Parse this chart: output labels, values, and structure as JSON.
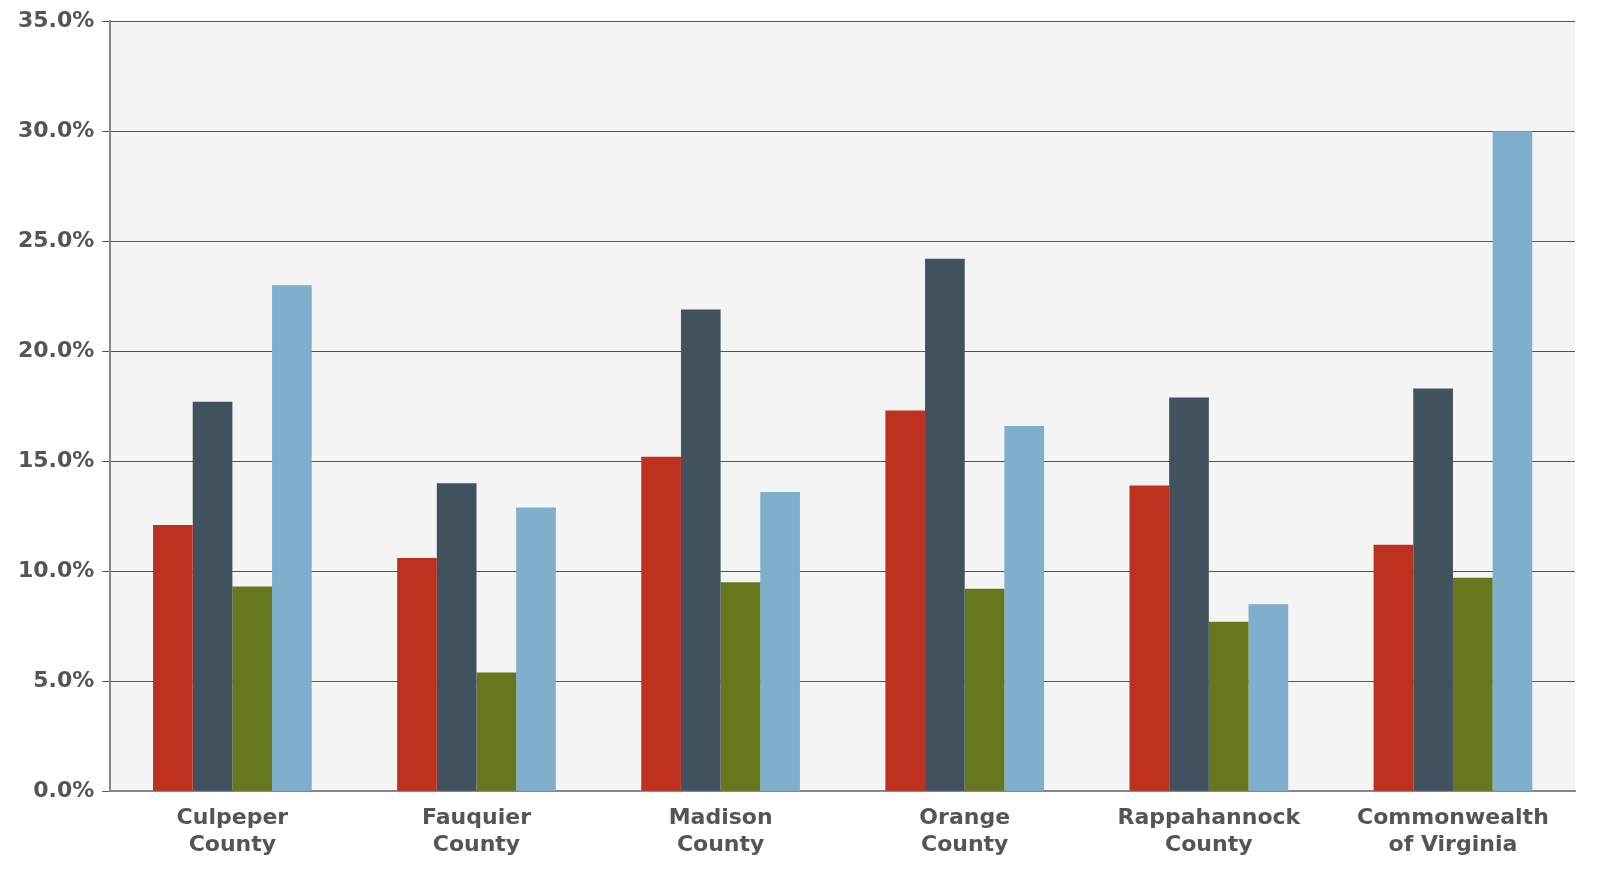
{
  "chart_data": {
    "type": "bar",
    "categories": [
      "Culpeper County",
      "Fauquier County",
      "Madison County",
      "Orange County",
      "Rappahannock County",
      "Commonwealth of Virginia"
    ],
    "series": [
      {
        "color": "#be311e",
        "values": [
          12.1,
          10.6,
          15.2,
          17.3,
          13.9,
          11.2
        ]
      },
      {
        "color": "#41525e",
        "values": [
          17.7,
          14.0,
          21.9,
          24.2,
          17.9,
          18.3
        ]
      },
      {
        "color": "#66771e",
        "values": [
          9.3,
          5.4,
          9.5,
          9.2,
          7.7,
          9.7
        ]
      },
      {
        "color": "#7eafcd",
        "values": [
          23.0,
          12.9,
          13.6,
          16.6,
          8.5,
          30.0
        ]
      }
    ],
    "ylim": [
      0,
      35
    ],
    "yticks": [
      {
        "value": 0,
        "label": "0.0%"
      },
      {
        "value": 5,
        "label": "5.0%"
      },
      {
        "value": 10,
        "label": "10.0%"
      },
      {
        "value": 15,
        "label": "15.0%"
      },
      {
        "value": 20,
        "label": "20.0%"
      },
      {
        "value": 25,
        "label": "25.0%"
      },
      {
        "value": 30,
        "label": "30.0%"
      },
      {
        "value": 35,
        "label": "35.0%"
      }
    ],
    "grid": "y",
    "legend": false
  }
}
